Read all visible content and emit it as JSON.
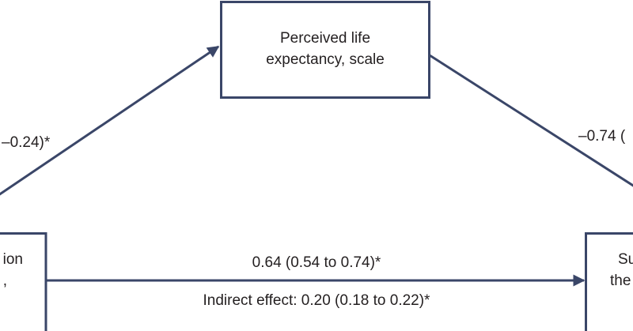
{
  "nodes": [
    {
      "label_lines": [
        "Perceived life",
        "expectancy, scale"
      ]
    },
    {
      "label_lines": [
        "ion",
        ","
      ]
    },
    {
      "label_lines": [
        "Su",
        "the"
      ]
    }
  ],
  "edges": [
    {
      "label": "–0.24)*"
    },
    {
      "label": "–0.74 ("
    },
    {
      "label": "0.64 (0.54 to 0.74)*",
      "sublabel": "Indirect effect: 0.20 (0.18 to 0.22)*"
    }
  ]
}
